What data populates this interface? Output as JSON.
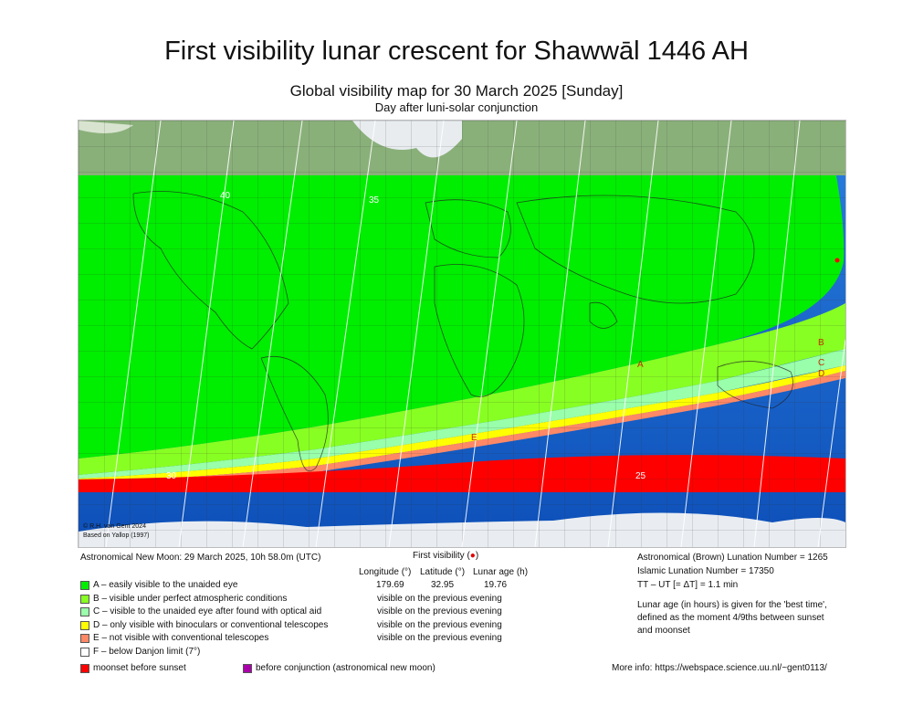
{
  "header": {
    "title": "First visibility lunar crescent for Shawwāl 1446 AH",
    "subtitle": "Global visibility map for 30 March 2025 [Sunday]",
    "subtitle2": "Day after luni-solar conjunction"
  },
  "map": {
    "copyright1": "© R.H. van Gent 2024",
    "copyright2": "Based on Yallop (1997)",
    "contour_labels": [
      "25",
      "30",
      "35",
      "40"
    ],
    "zone_letters": [
      "A",
      "B",
      "C",
      "D",
      "E"
    ],
    "colors": {
      "A": "#00ee00",
      "B": "#88ff22",
      "C": "#99ffaa",
      "D": "#ffff00",
      "E": "#ff8866",
      "F": "#ffffff",
      "moonset": "#ff0000",
      "before_conj": "#aa00aa",
      "ocean": "#1e6fd8",
      "ocean_deep": "#0b49b8"
    }
  },
  "info": {
    "new_moon": "Astronomical New Moon: 29 March 2025, 10h 58.0m (UTC)",
    "first_visibility": "First visibility (",
    "first_visibility_marker": "●",
    "first_visibility_close": ")",
    "col_longitude": "Longitude (°)",
    "col_latitude": "Latitude (°)",
    "col_age": "Lunar age (h)",
    "longitude": "179.69",
    "latitude": "32.95",
    "age": "19.76"
  },
  "legend": [
    {
      "code": "A",
      "label": "A – easily visible to the unaided eye",
      "color": "#00ee00",
      "note": ""
    },
    {
      "code": "B",
      "label": "B – visible under perfect atmospheric conditions",
      "color": "#88ff22",
      "note": "visible on the previous evening"
    },
    {
      "code": "C",
      "label": "C – visible to the unaided eye after found with optical aid",
      "color": "#99ffaa",
      "note": "visible on the previous evening"
    },
    {
      "code": "D",
      "label": "D – only visible with binoculars or conventional telescopes",
      "color": "#ffff00",
      "note": "visible on the previous evening"
    },
    {
      "code": "E",
      "label": "E – not visible with conventional telescopes",
      "color": "#ff8866",
      "note": "visible on the previous evening"
    },
    {
      "code": "F",
      "label": "F – below Danjon limit (7°)",
      "color": "#ffffff",
      "note": ""
    }
  ],
  "legend_extra": {
    "moonset": "moonset before sunset",
    "before_conj": "before conjunction (astronomical new moon)"
  },
  "right": {
    "brown": "Astronomical (Brown) Lunation Number = 1265",
    "islamic": "Islamic Lunation Number = 17350",
    "tt": "TT – UT [= ΔT] = 1.1 min",
    "note1": "Lunar age (in hours) is given for the 'best time',",
    "note2": "defined as the moment 4/9ths between sunset",
    "note3": "and moonset",
    "more": "More info: https://webspace.science.uu.nl/~gent0113/"
  }
}
